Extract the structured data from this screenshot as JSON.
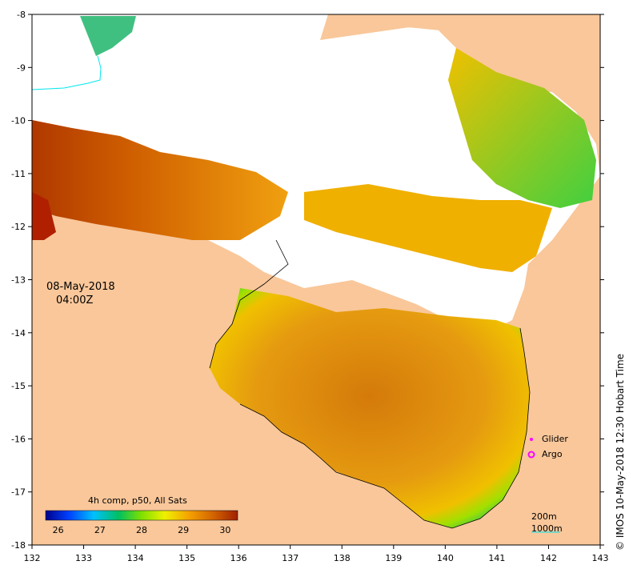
{
  "map": {
    "date": "08-May-2018",
    "time": "04:00Z",
    "credit": "© IMOS 10-May-2018 12:30 Hobart Time",
    "x_ticks": [
      "132",
      "133",
      "134",
      "135",
      "136",
      "137",
      "138",
      "139",
      "140",
      "141",
      "142",
      "143"
    ],
    "y_ticks": [
      "-8",
      "-9",
      "-10",
      "-11",
      "-12",
      "-13",
      "-14",
      "-15",
      "-16",
      "-17",
      "-18"
    ],
    "colorbar": {
      "title": "4h comp, p50, All Sats",
      "ticks": [
        "26",
        "27",
        "28",
        "29",
        "30"
      ],
      "range": [
        25.7,
        30.3
      ]
    },
    "legend": {
      "glider": "Glider",
      "argo": "Argo",
      "contour_200": "200m",
      "contour_1000": "1000m"
    },
    "colors": {
      "land": "#f9c79a",
      "nodata": "#ffffff",
      "glider_marker": "#ff00ff",
      "argo_marker": "#ff00ff",
      "contour_1000": "#00e5ee"
    }
  }
}
